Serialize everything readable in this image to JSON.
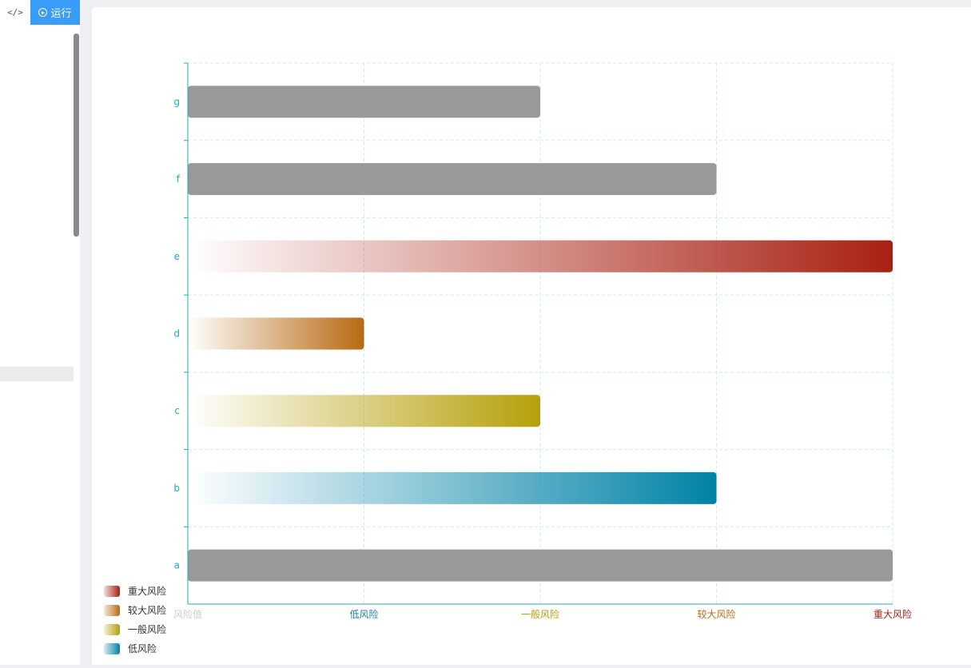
{
  "toolbar": {
    "code_label": "</>",
    "run_label": "运行"
  },
  "colors": {
    "axis": "#24a8b4",
    "grid": "#c8eef2",
    "bar_neutral": "#999999",
    "low": "#0082a6",
    "general": "#b5a00a",
    "larger": "#b86a12",
    "major": "#a82012"
  },
  "chart_data": {
    "type": "bar",
    "orientation": "horizontal",
    "categories": [
      "a",
      "b",
      "c",
      "d",
      "e",
      "f",
      "g"
    ],
    "values": [
      4,
      3,
      2,
      1,
      4,
      3,
      2
    ],
    "bar_styles": [
      "neutral",
      "low",
      "general",
      "larger",
      "major",
      "neutral",
      "neutral"
    ],
    "xlim": [
      0,
      4
    ],
    "x_tick_labels": [
      "风险值",
      "低风险",
      "一般风险",
      "较大风险",
      "重大风险"
    ],
    "x_tick_colors": [
      "#cccccc",
      "#1a7fa6",
      "#b5a00a",
      "#b86a12",
      "#a82012"
    ],
    "grid": true,
    "legend_position": "bottom-left",
    "legend": [
      {
        "label": "重大风险",
        "color": "#a82012"
      },
      {
        "label": "较大风险",
        "color": "#b86a12"
      },
      {
        "label": "一般风险",
        "color": "#b5a00a"
      },
      {
        "label": "低风险",
        "color": "#0082a6"
      }
    ]
  }
}
